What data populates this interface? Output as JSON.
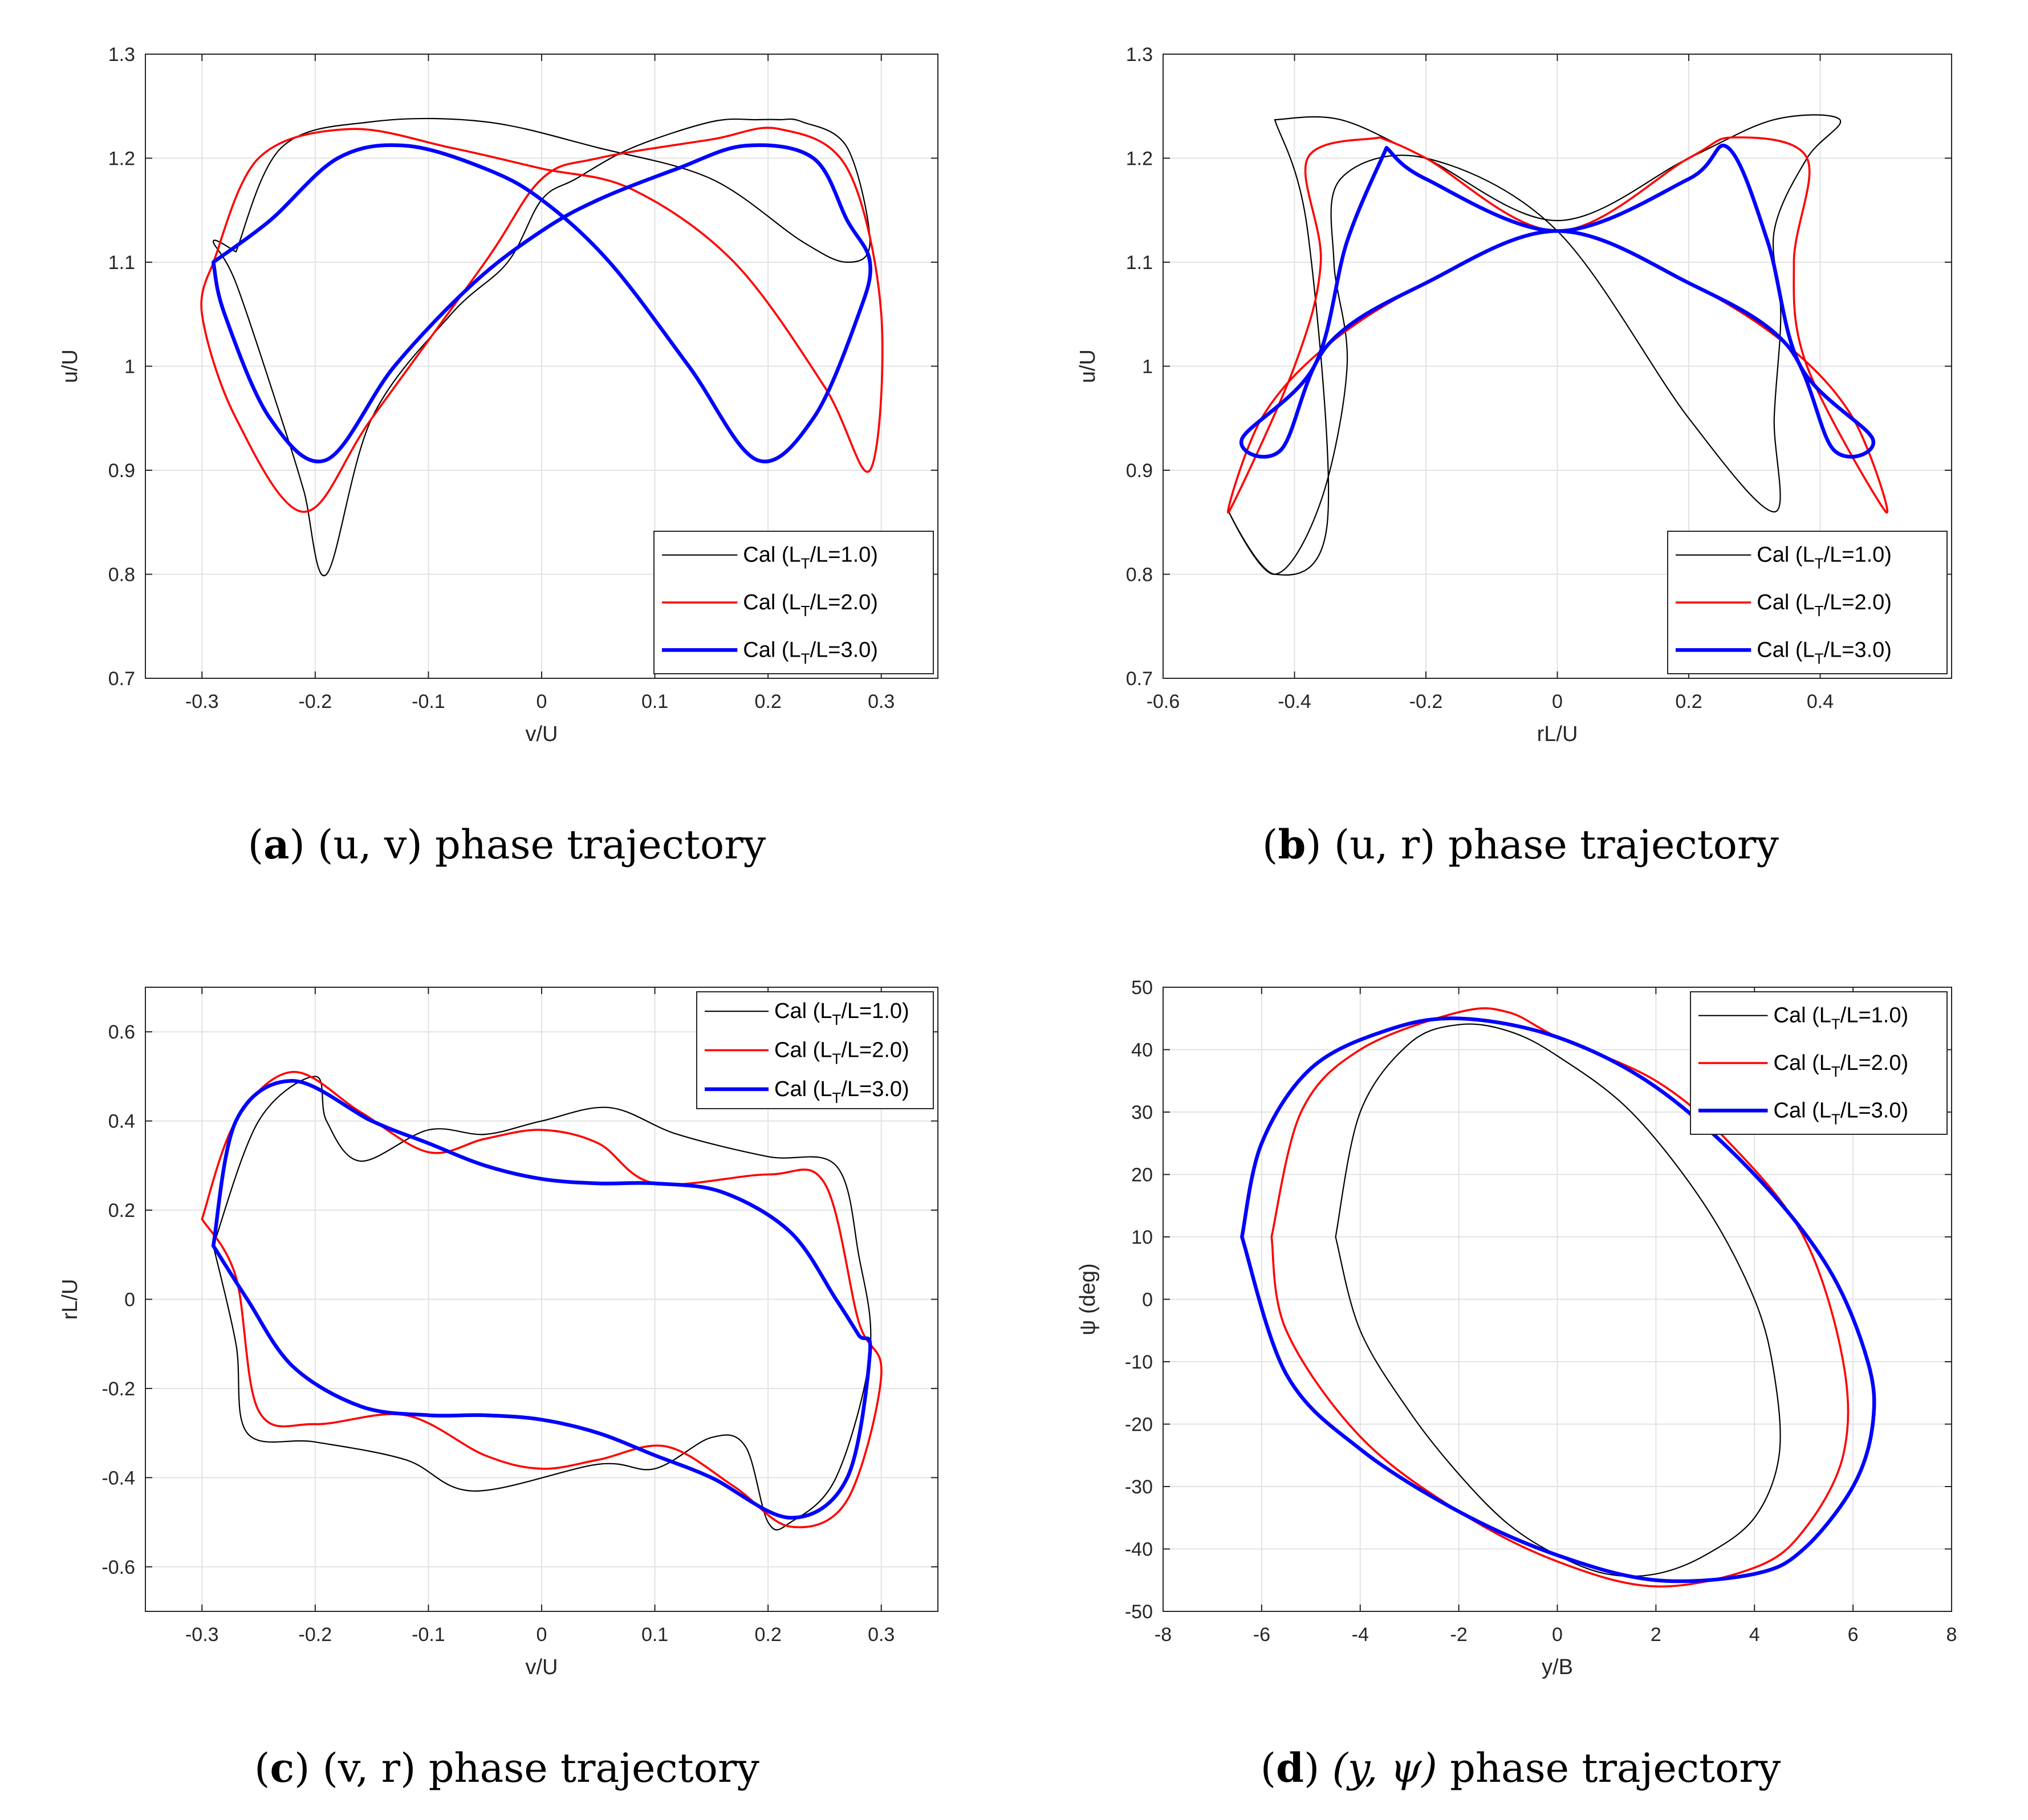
{
  "chart_data": [
    {
      "type": "line",
      "panel": "a",
      "caption_letter": "a",
      "caption_text": "(u, v) phase trajectory",
      "xlabel": "v/U",
      "ylabel": "u/U",
      "xlim": [
        -0.35,
        0.35
      ],
      "ylim": [
        0.7,
        1.3
      ],
      "xticks": [
        "-0.3",
        "-0.2",
        "-0.1",
        "0",
        "0.1",
        "0.2",
        "0.3"
      ],
      "xtick_values": [
        -0.3,
        -0.2,
        -0.1,
        0,
        0.1,
        0.2,
        0.3
      ],
      "yticks": [
        "0.7",
        "0.8",
        "0.9",
        "1",
        "1.1",
        "1.2",
        "1.3"
      ],
      "ytick_values": [
        0.7,
        0.8,
        0.9,
        1.0,
        1.1,
        1.2,
        1.3
      ],
      "grid": true,
      "legend_position": "bottom-right",
      "series": [
        {
          "name": "Cal (L_T/L=1.0)",
          "legend_main": "Cal (L",
          "legend_sub": "T",
          "legend_tail": "/L=1.0)",
          "color": "#000000",
          "weight": "thin",
          "x": [
            -0.27,
            -0.23,
            -0.15,
            -0.05,
            0.05,
            0.15,
            0.23,
            0.27,
            0.29,
            0.27,
            0.23,
            0.21,
            0.19,
            0.15,
            0.08,
            0.03,
            0.0,
            -0.03,
            -0.08,
            -0.15,
            -0.19,
            -0.21,
            -0.23,
            -0.27,
            -0.29,
            -0.27
          ],
          "y": [
            1.11,
            1.21,
            1.235,
            1.235,
            1.21,
            1.18,
            1.12,
            1.1,
            1.12,
            1.21,
            1.235,
            1.237,
            1.237,
            1.235,
            1.21,
            1.18,
            1.16,
            1.1,
            1.05,
            0.95,
            0.8,
            0.88,
            0.95,
            1.08,
            1.12,
            1.11
          ]
        },
        {
          "name": "Cal (L_T/L=2.0)",
          "legend_main": "Cal (L",
          "legend_sub": "T",
          "legend_tail": "/L=2.0)",
          "color": "#ff0000",
          "weight": "medium",
          "x": [
            -0.29,
            -0.25,
            -0.17,
            -0.08,
            0.0,
            0.08,
            0.17,
            0.25,
            0.29,
            0.3,
            0.27,
            0.21,
            0.15,
            0.05,
            0.0,
            -0.05,
            -0.15,
            -0.21,
            -0.27,
            -0.3,
            -0.29
          ],
          "y": [
            1.1,
            1.2,
            1.228,
            1.21,
            1.19,
            1.17,
            1.1,
            0.98,
            0.9,
            1.05,
            1.19,
            1.228,
            1.218,
            1.2,
            1.18,
            1.1,
            0.95,
            0.86,
            0.95,
            1.05,
            1.1
          ]
        },
        {
          "name": "Cal (L_T/L=3.0)",
          "legend_main": "Cal (L",
          "legend_sub": "T",
          "legend_tail": "/L=3.0)",
          "color": "#0000ff",
          "weight": "thick",
          "x": [
            -0.29,
            -0.24,
            -0.18,
            -0.12,
            -0.05,
            0.0,
            0.06,
            0.13,
            0.19,
            0.24,
            0.28,
            0.29,
            0.27,
            0.24,
            0.18,
            0.12,
            0.05,
            0.0,
            -0.06,
            -0.13,
            -0.19,
            -0.24,
            -0.28,
            -0.29
          ],
          "y": [
            1.1,
            1.14,
            1.2,
            1.212,
            1.19,
            1.16,
            1.1,
            1.0,
            0.91,
            0.95,
            1.05,
            1.1,
            1.14,
            1.2,
            1.212,
            1.19,
            1.16,
            1.13,
            1.08,
            1.0,
            0.91,
            0.95,
            1.05,
            1.1
          ]
        }
      ]
    },
    {
      "type": "line",
      "panel": "b",
      "caption_letter": "b",
      "caption_text": "(u, r) phase trajectory",
      "xlabel": "rL/U",
      "ylabel": "u/U",
      "xlim": [
        -0.6,
        0.6
      ],
      "ylim": [
        0.7,
        1.3
      ],
      "xticks": [
        "-0.6",
        "-0.4",
        "-0.2",
        "0",
        "0.2",
        "0.4"
      ],
      "xtick_values": [
        -0.6,
        -0.4,
        -0.2,
        0,
        0.2,
        0.4
      ],
      "yticks": [
        "0.7",
        "0.8",
        "0.9",
        "1",
        "1.1",
        "1.2",
        "1.3"
      ],
      "ytick_values": [
        0.7,
        0.8,
        0.9,
        1.0,
        1.1,
        1.2,
        1.3
      ],
      "grid": true,
      "legend_position": "bottom-right",
      "series": [
        {
          "name": "Cal (L_T/L=1.0)",
          "legend_main": "Cal (L",
          "legend_sub": "T",
          "legend_tail": "/L=1.0)",
          "color": "#000000",
          "weight": "thin",
          "x": [
            -0.43,
            -0.33,
            -0.2,
            0.0,
            0.2,
            0.33,
            0.43,
            0.38,
            0.33,
            0.34,
            0.33,
            0.33,
            0.2,
            0.0,
            -0.2,
            -0.33,
            -0.34,
            -0.32,
            -0.36,
            -0.43,
            -0.5,
            -0.43,
            -0.35,
            -0.38,
            -0.43
          ],
          "y": [
            1.237,
            1.237,
            1.2,
            1.14,
            1.2,
            1.237,
            1.237,
            1.2,
            1.13,
            1.05,
            0.95,
            0.86,
            0.95,
            1.13,
            1.2,
            1.18,
            1.1,
            1.0,
            0.87,
            0.8,
            0.86,
            0.8,
            0.85,
            1.13,
            1.237
          ]
        },
        {
          "name": "Cal (L_T/L=2.0)",
          "legend_main": "Cal (L",
          "legend_sub": "T",
          "legend_tail": "/L=2.0)",
          "color": "#ff0000",
          "weight": "medium",
          "x": [
            -0.27,
            -0.2,
            0.0,
            0.2,
            0.27,
            0.38,
            0.36,
            0.38,
            0.5,
            0.45,
            0.35,
            0.2,
            0.0,
            -0.2,
            -0.35,
            -0.45,
            -0.5,
            -0.4,
            -0.36,
            -0.38,
            -0.27
          ],
          "y": [
            1.22,
            1.2,
            1.13,
            1.2,
            1.22,
            1.2,
            1.1,
            1.0,
            0.86,
            0.95,
            1.02,
            1.08,
            1.13,
            1.08,
            1.02,
            0.95,
            0.86,
            1.0,
            1.1,
            1.2,
            1.22
          ]
        },
        {
          "name": "Cal (L_T/L=3.0)",
          "legend_main": "Cal (L",
          "legend_sub": "T",
          "legend_tail": "/L=3.0)",
          "color": "#0000ff",
          "weight": "thick",
          "x": [
            -0.26,
            -0.2,
            0.0,
            0.2,
            0.26,
            0.32,
            0.37,
            0.48,
            0.42,
            0.35,
            0.2,
            0.0,
            -0.2,
            -0.35,
            -0.42,
            -0.48,
            -0.37,
            -0.32,
            -0.26
          ],
          "y": [
            1.21,
            1.18,
            1.13,
            1.18,
            1.21,
            1.12,
            1.0,
            0.93,
            0.92,
            1.02,
            1.08,
            1.13,
            1.08,
            1.02,
            0.92,
            0.93,
            1.0,
            1.12,
            1.21
          ]
        }
      ]
    },
    {
      "type": "line",
      "panel": "c",
      "caption_letter": "c",
      "caption_text": "(v, r) phase trajectory",
      "xlabel": "v/U",
      "ylabel": "rL/U",
      "xlim": [
        -0.35,
        0.35
      ],
      "ylim": [
        -0.7,
        0.7
      ],
      "xticks": [
        "-0.3",
        "-0.2",
        "-0.1",
        "0",
        "0.1",
        "0.2",
        "0.3"
      ],
      "xtick_values": [
        -0.3,
        -0.2,
        -0.1,
        0,
        0.1,
        0.2,
        0.3
      ],
      "yticks": [
        "-0.6",
        "-0.4",
        "-0.2",
        "0",
        "0.2",
        "0.4",
        "0.6"
      ],
      "ytick_values": [
        -0.6,
        -0.4,
        -0.2,
        0,
        0.2,
        0.4,
        0.6
      ],
      "grid": true,
      "legend_position": "top-right",
      "series": [
        {
          "name": "Cal (L_T/L=1.0)",
          "legend_main": "Cal (L",
          "legend_sub": "T",
          "legend_tail": "/L=1.0)",
          "color": "#000000",
          "weight": "thin",
          "x": [
            -0.29,
            -0.25,
            -0.2,
            -0.19,
            -0.16,
            -0.1,
            -0.05,
            0.0,
            0.06,
            0.12,
            0.2,
            0.26,
            0.28,
            0.29,
            0.26,
            0.22,
            0.2,
            0.18,
            0.15,
            0.1,
            0.05,
            -0.06,
            -0.12,
            -0.2,
            -0.26,
            -0.27,
            -0.29
          ],
          "y": [
            0.12,
            0.4,
            0.5,
            0.4,
            0.31,
            0.38,
            0.37,
            0.4,
            0.43,
            0.37,
            0.32,
            0.3,
            0.1,
            -0.12,
            -0.4,
            -0.5,
            -0.5,
            -0.33,
            -0.31,
            -0.38,
            -0.37,
            -0.43,
            -0.36,
            -0.32,
            -0.3,
            -0.1,
            0.12
          ]
        },
        {
          "name": "Cal (L_T/L=2.0)",
          "legend_main": "Cal (L",
          "legend_sub": "T",
          "legend_tail": "/L=2.0)",
          "color": "#ff0000",
          "weight": "medium",
          "x": [
            -0.3,
            -0.27,
            -0.22,
            -0.16,
            -0.1,
            -0.05,
            0.0,
            0.05,
            0.1,
            0.2,
            0.25,
            0.28,
            0.3,
            0.27,
            0.22,
            0.17,
            0.11,
            0.05,
            0.0,
            -0.05,
            -0.12,
            -0.2,
            -0.25,
            -0.27,
            -0.3
          ],
          "y": [
            0.18,
            0.4,
            0.51,
            0.42,
            0.33,
            0.36,
            0.38,
            0.35,
            0.26,
            0.28,
            0.26,
            -0.05,
            -0.17,
            -0.45,
            -0.51,
            -0.42,
            -0.33,
            -0.36,
            -0.38,
            -0.35,
            -0.26,
            -0.28,
            -0.25,
            0.05,
            0.18
          ]
        },
        {
          "name": "Cal (L_T/L=3.0)",
          "legend_main": "Cal (L",
          "legend_sub": "T",
          "legend_tail": "/L=3.0)",
          "color": "#0000ff",
          "weight": "thick",
          "x": [
            -0.29,
            -0.27,
            -0.22,
            -0.15,
            -0.1,
            -0.05,
            0.0,
            0.05,
            0.1,
            0.16,
            0.22,
            0.26,
            0.28,
            0.29,
            0.27,
            0.22,
            0.15,
            0.1,
            0.05,
            0.0,
            -0.05,
            -0.1,
            -0.16,
            -0.22,
            -0.26,
            -0.29
          ],
          "y": [
            0.12,
            0.4,
            0.49,
            0.4,
            0.35,
            0.3,
            0.27,
            0.26,
            0.26,
            0.24,
            0.15,
            0.0,
            -0.08,
            -0.12,
            -0.4,
            -0.49,
            -0.4,
            -0.35,
            -0.3,
            -0.27,
            -0.26,
            -0.26,
            -0.24,
            -0.15,
            0.0,
            0.12
          ]
        }
      ]
    },
    {
      "type": "line",
      "panel": "d",
      "caption_letter": "d",
      "caption_math": "(y, ψ)",
      "caption_text": "phase trajectory",
      "xlabel": "y/B",
      "ylabel": "ψ (deg)",
      "xlim": [
        -8,
        8
      ],
      "ylim": [
        -50,
        50
      ],
      "xticks": [
        "-8",
        "-6",
        "-4",
        "-2",
        "0",
        "2",
        "4",
        "6",
        "8"
      ],
      "xtick_values": [
        -8,
        -6,
        -4,
        -2,
        0,
        2,
        4,
        6,
        8
      ],
      "yticks": [
        "-50",
        "-40",
        "-30",
        "-20",
        "-10",
        "0",
        "10",
        "20",
        "30",
        "40",
        "50"
      ],
      "ytick_values": [
        -50,
        -40,
        -30,
        -20,
        -10,
        0,
        10,
        20,
        30,
        40,
        50
      ],
      "grid": true,
      "legend_position": "top-right",
      "series": [
        {
          "name": "Cal (L_T/L=1.0)",
          "legend_main": "Cal (L",
          "legend_sub": "T",
          "legend_tail": "/L=1.0)",
          "color": "#000000",
          "weight": "thin",
          "x": [
            -4.5,
            -4.0,
            -3.0,
            -2.0,
            -1.0,
            0.0,
            1.5,
            3.0,
            4.0,
            4.4,
            4.5,
            4.0,
            3.0,
            2.0,
            1.0,
            0.0,
            -1.0,
            -2.0,
            -3.0,
            -4.0,
            -4.5
          ],
          "y": [
            10,
            30,
            41,
            44,
            43,
            39,
            30,
            15,
            0,
            -12,
            -25,
            -35,
            -41,
            -44,
            -44,
            -41,
            -36,
            -28,
            -18,
            -5,
            10
          ]
        },
        {
          "name": "Cal (L_T/L=2.0)",
          "legend_main": "Cal (L",
          "legend_sub": "T",
          "legend_tail": "/L=2.0)",
          "color": "#ff0000",
          "weight": "medium",
          "x": [
            -5.8,
            -5.2,
            -4.0,
            -2.0,
            -1.0,
            0.0,
            2.0,
            3.5,
            5.0,
            5.8,
            5.8,
            5.0,
            4.0,
            2.0,
            0.0,
            -2.0,
            -4.0,
            -5.5,
            -5.8
          ],
          "y": [
            10,
            30,
            40,
            46,
            46,
            42,
            35,
            25,
            10,
            -10,
            -25,
            -37,
            -43,
            -46,
            -42,
            -34,
            -22,
            -5,
            10
          ]
        },
        {
          "name": "Cal (L_T/L=3.0)",
          "legend_main": "Cal (L",
          "legend_sub": "T",
          "legend_tail": "/L=3.0)",
          "color": "#0000ff",
          "weight": "thick",
          "x": [
            -6.4,
            -6.0,
            -5.0,
            -3.5,
            -2.0,
            0.0,
            2.0,
            4.0,
            5.5,
            6.3,
            6.4,
            6.0,
            5.0,
            4.0,
            2.0,
            0.0,
            -2.0,
            -4.0,
            -5.5,
            -6.4
          ],
          "y": [
            10,
            25,
            37,
            43,
            45,
            42,
            34,
            20,
            5,
            -10,
            -20,
            -30,
            -40,
            -44,
            -45,
            -41,
            -34,
            -24,
            -12,
            10
          ]
        }
      ]
    }
  ]
}
